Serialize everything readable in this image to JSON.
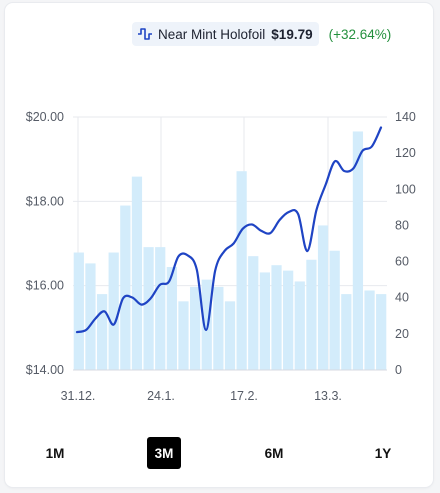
{
  "legend": {
    "icon": "line-series-icon",
    "name": "Near Mint Holofoil",
    "price": "$19.79",
    "change": "(+32.64%)",
    "change_color": "#23903d"
  },
  "colors": {
    "line": "#1f44c4",
    "bar": "#d3ecfb",
    "grid": "#e7e9ee",
    "active_range_bg": "#000000"
  },
  "chart_data": {
    "type": "line",
    "secondary_type": "bar",
    "grid": true,
    "y_left_ticks": [
      "$14.00",
      "$16.00",
      "$18.00",
      "$20.00"
    ],
    "y_left_lim": [
      14,
      20
    ],
    "y_right_ticks": [
      "0",
      "20",
      "40",
      "60",
      "80",
      "100",
      "120",
      "140"
    ],
    "y_right_lim": [
      0,
      140
    ],
    "x_ticks": [
      "31.12.",
      "24.1.",
      "17.2.",
      "13.3."
    ],
    "series": [
      {
        "type": "line",
        "axis": "left",
        "values": [
          14.9,
          14.95,
          15.22,
          15.39,
          15.08,
          15.7,
          15.72,
          15.55,
          15.7,
          16.02,
          16.1,
          16.69,
          16.72,
          16.38,
          14.95,
          16.36,
          16.82,
          17.0,
          17.35,
          17.45,
          17.3,
          17.25,
          17.56,
          17.75,
          17.7,
          16.82,
          17.8,
          18.4,
          18.95,
          18.72,
          18.78,
          19.2,
          19.3,
          19.75
        ]
      },
      {
        "type": "bar",
        "axis": "right",
        "values": [
          65,
          59,
          42,
          65,
          91,
          107,
          68,
          68,
          57,
          38,
          46,
          50,
          46,
          38,
          110,
          63,
          54,
          58,
          55,
          49,
          61,
          80,
          66,
          42,
          132,
          44,
          42
        ]
      }
    ]
  },
  "ranges": [
    {
      "label": "1M",
      "active": false
    },
    {
      "label": "3M",
      "active": true
    },
    {
      "label": "6M",
      "active": false
    },
    {
      "label": "1Y",
      "active": false
    }
  ]
}
